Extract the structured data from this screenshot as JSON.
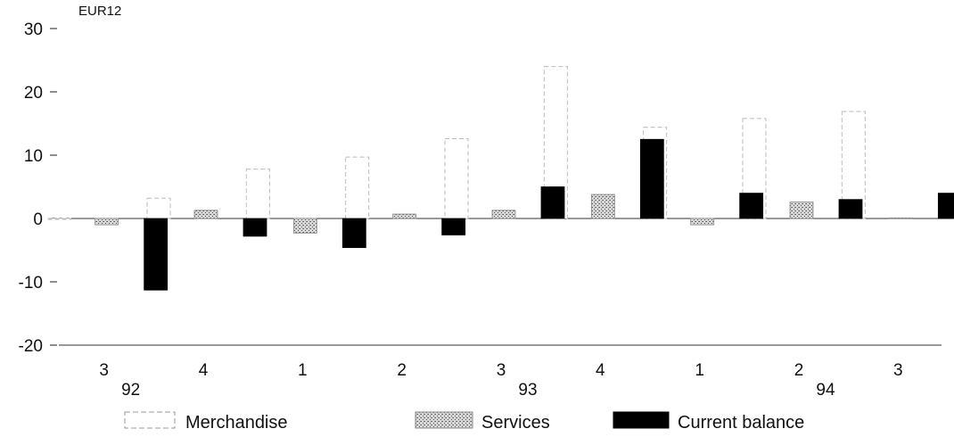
{
  "chart_data": {
    "type": "bar",
    "unit_label": "EUR12",
    "quarters": [
      "3",
      "4",
      "1",
      "2",
      "3",
      "4",
      "1",
      "2",
      "3"
    ],
    "years": [
      {
        "label": "92",
        "quarter_index": 0
      },
      {
        "label": "93",
        "quarter_index": 4
      },
      {
        "label": "94",
        "quarter_index": 7
      }
    ],
    "series": [
      {
        "name": "Merchandise",
        "values": [
          0,
          3.2,
          7.8,
          9.7,
          12.6,
          24.0,
          14.4,
          15.8,
          16.9
        ]
      },
      {
        "name": "Services",
        "values": [
          -1.0,
          1.3,
          -2.3,
          0.7,
          1.3,
          3.8,
          -1.0,
          2.6,
          0.1
        ]
      },
      {
        "name": "Current balance",
        "values": [
          -11.3,
          -2.8,
          -4.6,
          -2.6,
          5.0,
          12.5,
          4.0,
          3.0,
          4.0
        ]
      }
    ],
    "y_ticks": [
      30,
      20,
      10,
      0,
      -10,
      -20
    ],
    "ylim": [
      -20,
      30
    ],
    "colors": {
      "merchandise": "#ffffff",
      "services": "#c8c8c8",
      "current_balance": "#000000",
      "axis": "#222222"
    },
    "legend_position": "bottom"
  }
}
